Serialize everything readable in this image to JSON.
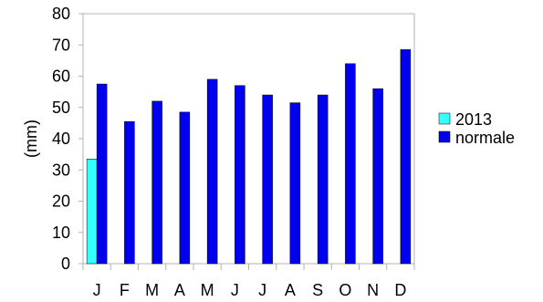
{
  "chart_data": {
    "type": "bar",
    "categories": [
      "J",
      "F",
      "M",
      "A",
      "M",
      "J",
      "J",
      "A",
      "S",
      "O",
      "N",
      "D"
    ],
    "series": [
      {
        "name": "2013",
        "color": "#33ffff",
        "values": [
          33.5,
          null,
          null,
          null,
          null,
          null,
          null,
          null,
          null,
          null,
          null,
          null
        ]
      },
      {
        "name": "normale",
        "color": "#0000ee",
        "values": [
          57.5,
          45.5,
          52,
          48.5,
          59,
          57,
          54,
          51.5,
          54,
          64,
          56,
          68.5
        ]
      }
    ],
    "title": "",
    "xlabel": "",
    "ylabel": "(mm)",
    "ylim": [
      0,
      80
    ],
    "yticks": [
      0,
      10,
      20,
      30,
      40,
      50,
      60,
      70,
      80
    ],
    "grid": false,
    "legend_position": "right"
  }
}
